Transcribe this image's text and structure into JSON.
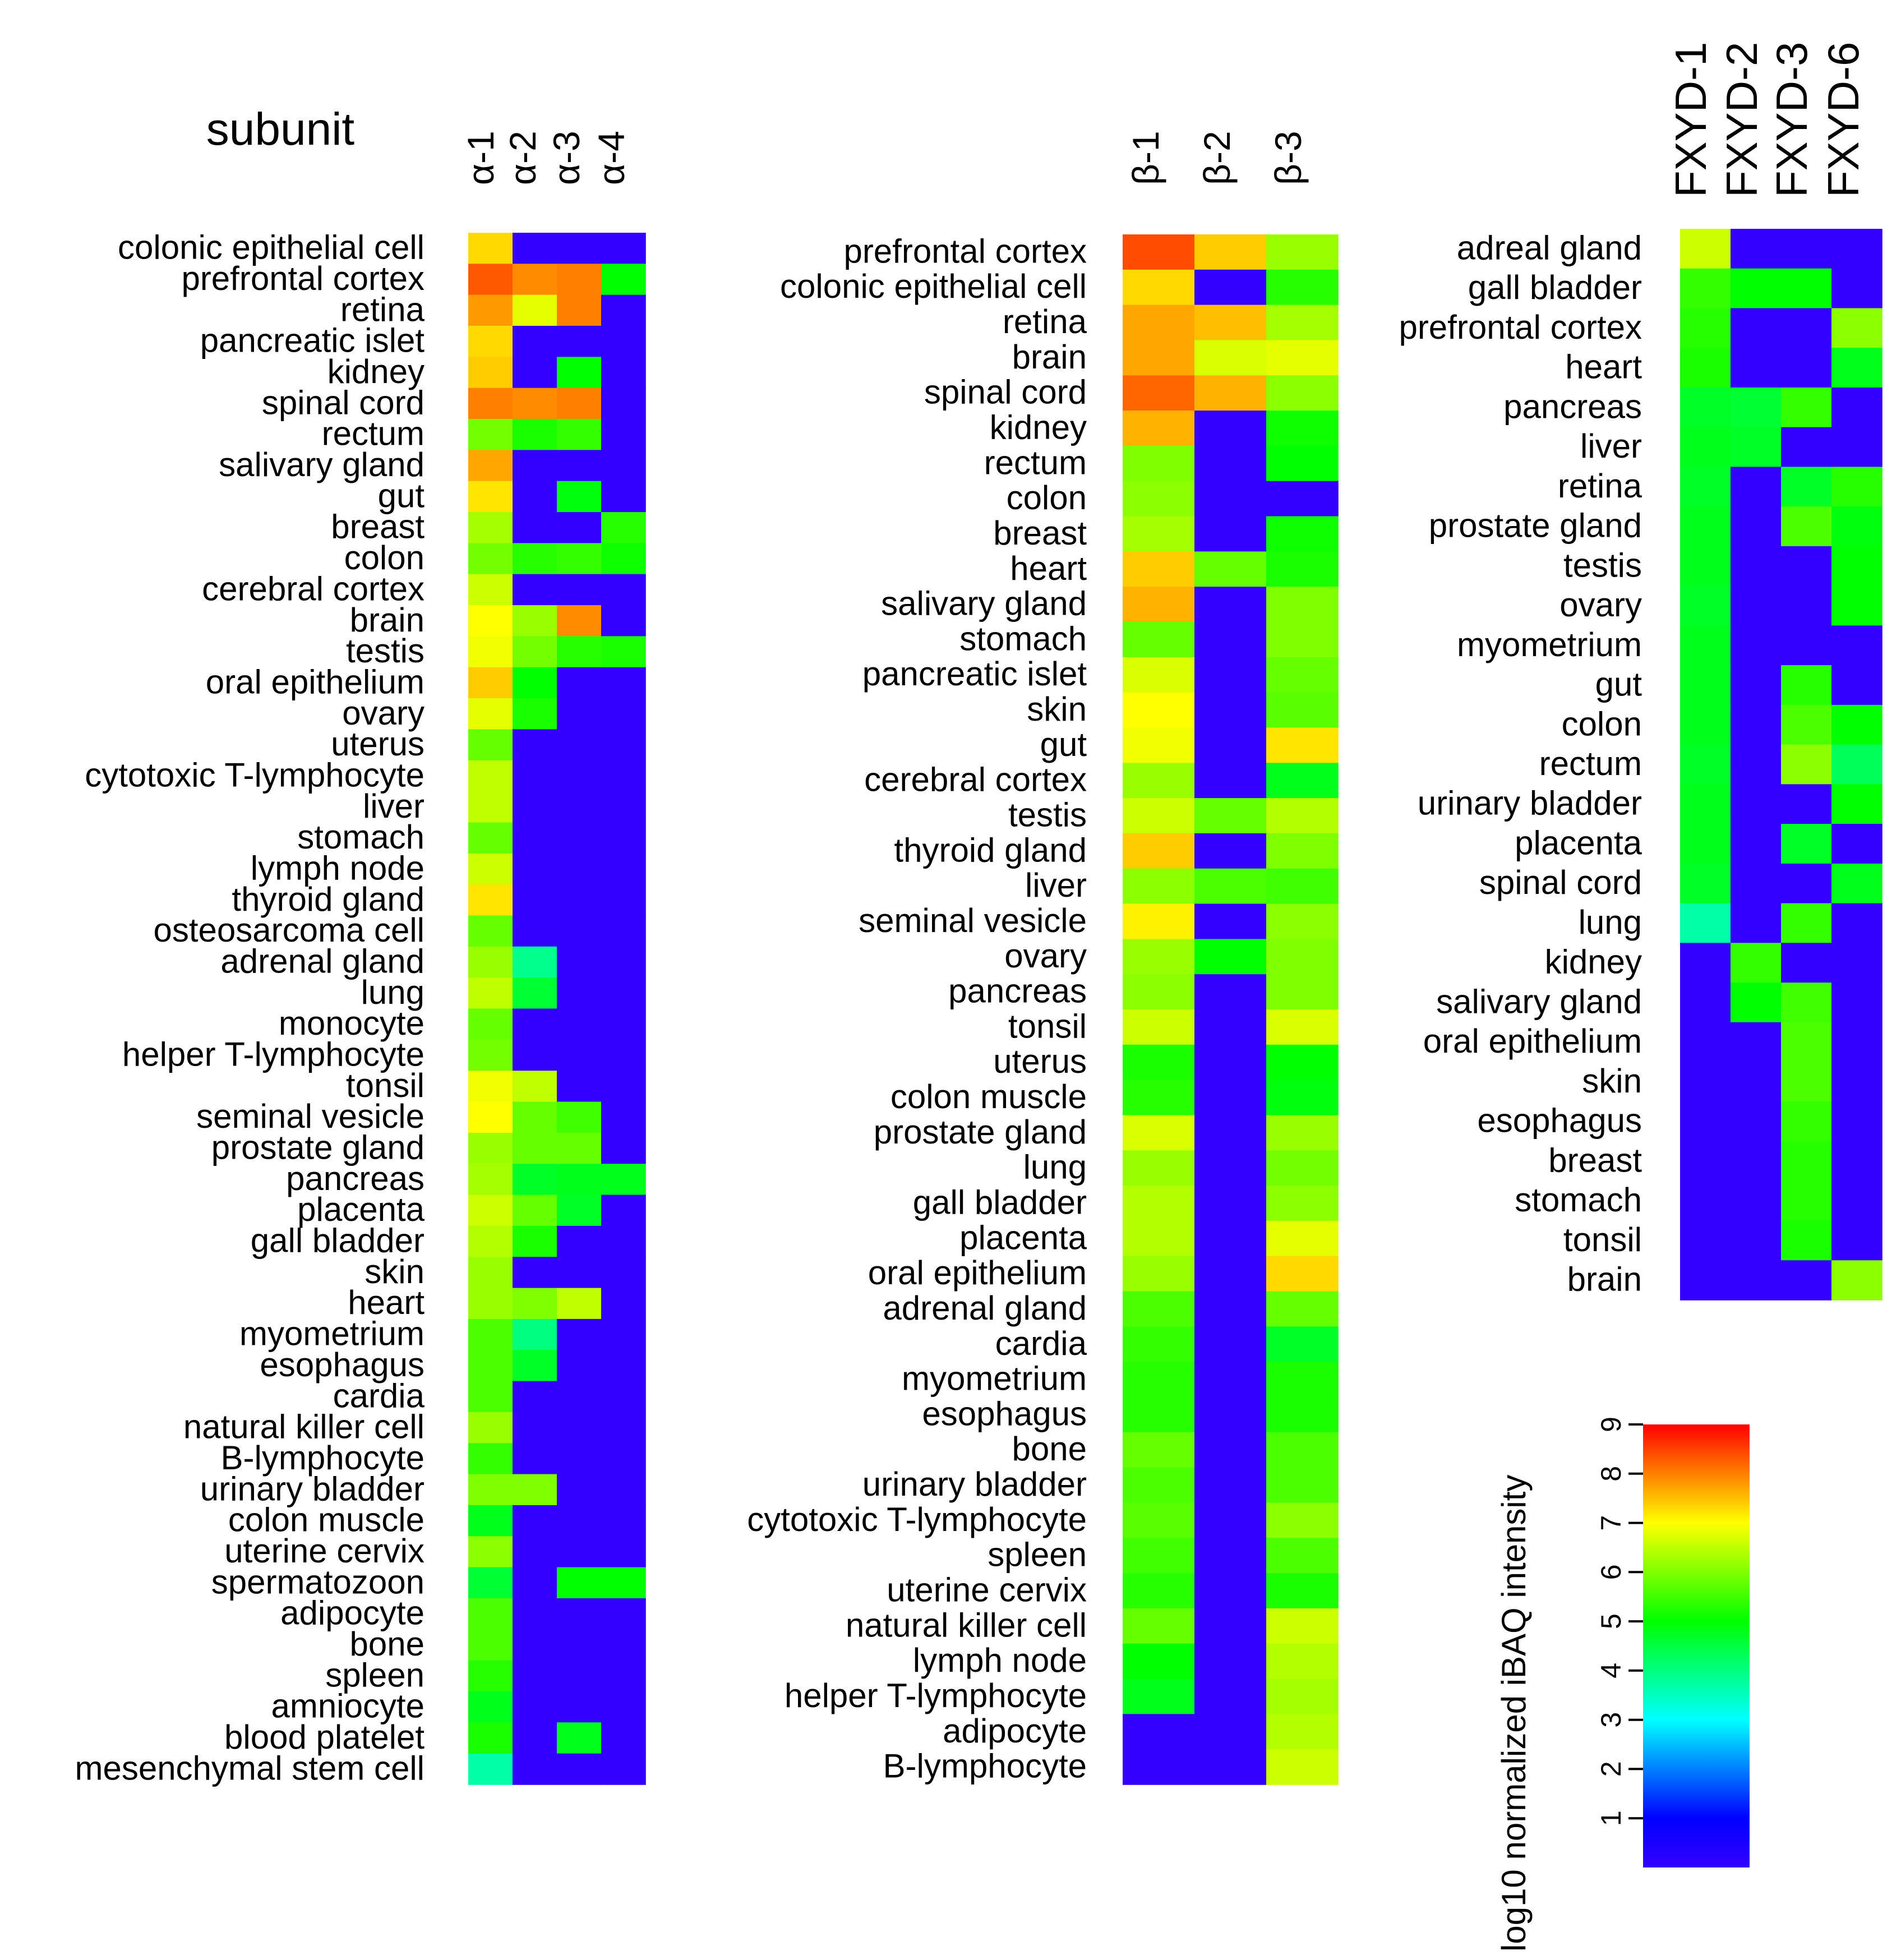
{
  "colors": {
    "low": "#3300ff",
    "ramp": [
      "#0000ff",
      "#00ffff",
      "#00ff00",
      "#ffff00",
      "#ff0000"
    ]
  },
  "chart_data": {
    "type": "heatmap",
    "title": "subunit",
    "color_scale": {
      "label": "log10 normalized iBAQ intensity",
      "range": [
        0,
        9
      ],
      "ticks": [
        1,
        2,
        3,
        4,
        5,
        6,
        7,
        8,
        9
      ]
    },
    "panels": [
      {
        "name": "alpha",
        "columns": [
          "α-1",
          "α-2",
          "α-3",
          "α-4"
        ],
        "rows": [
          "colonic epithelial cell",
          "prefrontal cortex",
          "retina",
          "pancreatic islet",
          "kidney",
          "spinal cord",
          "rectum",
          "salivary gland",
          "gut",
          "breast",
          "colon",
          "cerebral cortex",
          "brain",
          "testis",
          "oral epithelium",
          "ovary",
          "uterus",
          "cytotoxic T-lymphocyte",
          "liver",
          "stomach",
          "lymph node",
          "thyroid gland",
          "osteosarcoma cell",
          "adrenal gland",
          "lung",
          "monocyte",
          "helper T-lymphocyte",
          "tonsil",
          "seminal vesicle",
          "prostate gland",
          "pancreas",
          "placenta",
          "gall bladder",
          "skin",
          "heart",
          "myometrium",
          "esophagus",
          "cardia",
          "natural killer cell",
          "B-lymphocyte",
          "urinary bladder",
          "colon muscle",
          "uterine cervix",
          "spermatozoon",
          "adipocyte",
          "bone",
          "spleen",
          "amniocyte",
          "blood platelet",
          "mesenchymal stem cell"
        ],
        "values": [
          [
            7.3,
            0,
            0,
            0
          ],
          [
            8.3,
            7.9,
            8.0,
            5.0
          ],
          [
            7.8,
            6.8,
            8.0,
            0
          ],
          [
            7.3,
            0,
            0,
            0
          ],
          [
            7.4,
            0,
            5.0,
            0
          ],
          [
            8.0,
            7.9,
            8.0,
            0
          ],
          [
            5.9,
            5.2,
            5.4,
            0
          ],
          [
            7.7,
            0,
            0,
            0
          ],
          [
            7.2,
            0,
            4.9,
            0
          ],
          [
            6.3,
            0,
            0,
            5.3
          ],
          [
            5.9,
            5.3,
            5.4,
            5.1
          ],
          [
            6.6,
            0,
            0,
            0
          ],
          [
            7.0,
            6.2,
            7.9,
            0
          ],
          [
            6.9,
            5.9,
            5.3,
            5.2
          ],
          [
            7.4,
            5.0,
            0,
            0
          ],
          [
            6.8,
            5.2,
            0,
            0
          ],
          [
            5.8,
            0,
            0,
            0
          ],
          [
            6.5,
            0,
            0,
            0
          ],
          [
            6.5,
            0,
            0,
            0
          ],
          [
            5.8,
            0,
            0,
            0
          ],
          [
            6.6,
            0,
            0,
            0
          ],
          [
            7.2,
            0,
            0,
            0
          ],
          [
            5.8,
            0,
            0,
            0
          ],
          [
            6.2,
            3.9,
            0,
            0
          ],
          [
            6.5,
            4.6,
            0,
            0
          ],
          [
            5.8,
            0,
            0,
            0
          ],
          [
            5.9,
            0,
            0,
            0
          ],
          [
            6.9,
            6.5,
            0,
            0
          ],
          [
            7.0,
            5.8,
            5.5,
            0
          ],
          [
            6.2,
            5.8,
            5.8,
            0
          ],
          [
            6.3,
            4.7,
            4.8,
            4.8
          ],
          [
            6.6,
            5.8,
            4.7,
            0
          ],
          [
            6.4,
            5.2,
            0,
            0
          ],
          [
            6.2,
            0,
            0,
            0
          ],
          [
            6.2,
            6.0,
            6.5,
            0
          ],
          [
            5.6,
            4.0,
            0,
            0
          ],
          [
            5.6,
            4.7,
            0,
            0
          ],
          [
            5.6,
            0,
            0,
            0
          ],
          [
            6.2,
            0,
            0,
            0
          ],
          [
            5.4,
            0,
            0,
            0
          ],
          [
            6.0,
            6.0,
            0,
            0
          ],
          [
            4.8,
            0,
            0,
            0
          ],
          [
            6.1,
            0,
            0,
            0
          ],
          [
            4.6,
            0,
            5.0,
            5.0
          ],
          [
            5.6,
            0,
            0,
            0
          ],
          [
            5.6,
            0,
            0,
            0
          ],
          [
            5.3,
            0,
            0,
            0
          ],
          [
            4.8,
            0,
            0,
            0
          ],
          [
            5.2,
            0,
            4.8,
            0
          ],
          [
            3.7,
            0,
            0,
            0
          ]
        ]
      },
      {
        "name": "beta",
        "columns": [
          "β-1",
          "β-2",
          "β-3"
        ],
        "rows": [
          "prefrontal cortex",
          "colonic epithelial cell",
          "retina",
          "brain",
          "spinal cord",
          "kidney",
          "rectum",
          "colon",
          "breast",
          "heart",
          "salivary gland",
          "stomach",
          "pancreatic islet",
          "skin",
          "gut",
          "cerebral cortex",
          "testis",
          "thyroid gland",
          "liver",
          "seminal vesicle",
          "ovary",
          "pancreas",
          "tonsil",
          "uterus",
          "colon muscle",
          "prostate gland",
          "lung",
          "gall bladder",
          "placenta",
          "oral epithelium",
          "adrenal gland",
          "cardia",
          "myometrium",
          "esophagus",
          "bone",
          "urinary bladder",
          "cytotoxic T-lymphocyte",
          "spleen",
          "uterine cervix",
          "natural killer cell",
          "lymph node",
          "helper T-lymphocyte",
          "adipocyte",
          "B-lymphocyte"
        ],
        "values": [
          [
            8.4,
            7.4,
            6.2
          ],
          [
            7.3,
            0,
            5.3
          ],
          [
            7.7,
            7.5,
            6.3
          ],
          [
            7.7,
            6.7,
            6.8
          ],
          [
            8.2,
            7.6,
            6.1
          ],
          [
            7.6,
            0,
            5.1
          ],
          [
            6.0,
            0,
            5.0
          ],
          [
            6.1,
            0,
            0
          ],
          [
            6.3,
            0,
            5.1
          ],
          [
            7.4,
            5.8,
            5.2
          ],
          [
            7.6,
            0,
            6.0
          ],
          [
            5.8,
            0,
            6.0
          ],
          [
            6.7,
            0,
            5.8
          ],
          [
            7.0,
            0,
            5.7
          ],
          [
            6.9,
            0,
            7.2
          ],
          [
            6.2,
            0,
            4.8
          ],
          [
            6.6,
            5.8,
            6.4
          ],
          [
            7.4,
            0,
            6.0
          ],
          [
            6.1,
            5.6,
            5.5
          ],
          [
            7.1,
            0,
            6.1
          ],
          [
            6.2,
            5.0,
            6.0
          ],
          [
            6.1,
            0,
            6.0
          ],
          [
            6.6,
            0,
            6.7
          ],
          [
            5.2,
            0,
            5.0
          ],
          [
            5.3,
            0,
            4.9
          ],
          [
            6.7,
            0,
            6.2
          ],
          [
            6.2,
            0,
            5.9
          ],
          [
            6.4,
            0,
            6.1
          ],
          [
            6.4,
            0,
            6.8
          ],
          [
            6.2,
            0,
            7.3
          ],
          [
            5.6,
            0,
            5.8
          ],
          [
            5.4,
            0,
            4.7
          ],
          [
            5.3,
            0,
            5.2
          ],
          [
            5.3,
            0,
            5.2
          ],
          [
            5.8,
            0,
            5.6
          ],
          [
            5.6,
            0,
            5.6
          ],
          [
            5.7,
            0,
            6.1
          ],
          [
            5.5,
            0,
            5.6
          ],
          [
            5.3,
            0,
            5.2
          ],
          [
            5.8,
            0,
            6.6
          ],
          [
            5.0,
            0,
            6.4
          ],
          [
            4.8,
            0,
            6.3
          ],
          [
            0,
            0,
            6.4
          ],
          [
            0,
            0,
            6.6
          ]
        ]
      },
      {
        "name": "fxyd",
        "columns": [
          "FXYD-1",
          "FXYD-2",
          "FXYD-3",
          "FXYD-6"
        ],
        "rows": [
          "adreal gland",
          "gall bladder",
          "prefrontal cortex",
          "heart",
          "pancreas",
          "liver",
          "retina",
          "prostate gland",
          "testis",
          "ovary",
          "myometrium",
          "gut",
          "colon",
          "rectum",
          "urinary bladder",
          "placenta",
          "spinal cord",
          "lung",
          "kidney",
          "salivary gland",
          "oral epithelium",
          "skin",
          "esophagus",
          "breast",
          "stomach",
          "tonsil",
          "brain"
        ],
        "values": [
          [
            6.6,
            0,
            0,
            0
          ],
          [
            5.4,
            5.0,
            5.0,
            0
          ],
          [
            5.3,
            0,
            0,
            6.1
          ],
          [
            5.2,
            0,
            0,
            4.8
          ],
          [
            4.7,
            4.6,
            5.4,
            0
          ],
          [
            4.8,
            4.7,
            0,
            0
          ],
          [
            4.7,
            0,
            4.7,
            5.3
          ],
          [
            4.8,
            0,
            5.6,
            4.9
          ],
          [
            4.8,
            0,
            0,
            5.0
          ],
          [
            4.7,
            0,
            0,
            5.0
          ],
          [
            4.8,
            0,
            0,
            0
          ],
          [
            4.8,
            0,
            5.3,
            0
          ],
          [
            4.8,
            0,
            5.6,
            5.0
          ],
          [
            4.7,
            0,
            6.1,
            4.3
          ],
          [
            4.8,
            0,
            0,
            5.0
          ],
          [
            4.8,
            0,
            4.7,
            0
          ],
          [
            4.7,
            0,
            0,
            4.8
          ],
          [
            3.7,
            0,
            5.4,
            0
          ],
          [
            0,
            5.4,
            0,
            0
          ],
          [
            0,
            5.0,
            5.5,
            0
          ],
          [
            0,
            0,
            5.6,
            0
          ],
          [
            0,
            0,
            5.6,
            0
          ],
          [
            0,
            0,
            5.4,
            0
          ],
          [
            0,
            0,
            5.3,
            0
          ],
          [
            0,
            0,
            5.3,
            0
          ],
          [
            0,
            0,
            5.2,
            0
          ],
          [
            0,
            0,
            0,
            6.1
          ]
        ]
      }
    ]
  }
}
